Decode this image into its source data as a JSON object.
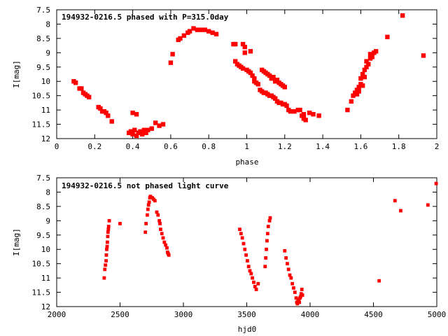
{
  "chart_data": [
    {
      "type": "scatter",
      "title": "194932-0216.5 phased with P=315.0day",
      "xlabel": "phase",
      "ylabel": "I[mag]",
      "xlim": [
        0,
        2
      ],
      "ylim": [
        12,
        7.5
      ],
      "y_inverted": true,
      "xticks": [
        0,
        0.2,
        0.4,
        0.6,
        0.8,
        1,
        1.2,
        1.4,
        1.6,
        1.8,
        2
      ],
      "xtick_labels": [
        "0",
        "0.2",
        "0.4",
        "0.6",
        "0.8",
        "1",
        "1.2",
        "1.4",
        "1.6",
        "1.8",
        "2"
      ],
      "yticks": [
        7.5,
        8,
        8.5,
        9,
        9.5,
        10,
        10.5,
        11,
        11.5,
        12
      ],
      "ytick_labels": [
        "7.5",
        "8",
        "8.5",
        "9",
        "9.5",
        "10",
        "10.5",
        "11",
        "11.5",
        "12"
      ],
      "grid": false,
      "marker_color": "#ff0000",
      "points": [
        [
          0.09,
          10.0
        ],
        [
          0.1,
          10.05
        ],
        [
          0.12,
          10.25
        ],
        [
          0.13,
          10.25
        ],
        [
          0.14,
          10.4
        ],
        [
          0.15,
          10.45
        ],
        [
          0.16,
          10.5
        ],
        [
          0.17,
          10.55
        ],
        [
          0.22,
          10.9
        ],
        [
          0.23,
          10.95
        ],
        [
          0.24,
          11.05
        ],
        [
          0.25,
          11.05
        ],
        [
          0.26,
          11.1
        ],
        [
          0.27,
          11.2
        ],
        [
          0.29,
          11.4
        ],
        [
          0.38,
          11.8
        ],
        [
          0.39,
          11.75
        ],
        [
          0.4,
          11.1
        ],
        [
          0.4,
          11.85
        ],
        [
          0.41,
          11.7
        ],
        [
          0.42,
          11.9
        ],
        [
          0.42,
          11.15
        ],
        [
          0.43,
          11.8
        ],
        [
          0.44,
          11.75
        ],
        [
          0.45,
          11.85
        ],
        [
          0.46,
          11.7
        ],
        [
          0.47,
          11.8
        ],
        [
          0.48,
          11.7
        ],
        [
          0.5,
          11.65
        ],
        [
          0.52,
          11.45
        ],
        [
          0.54,
          11.55
        ],
        [
          0.56,
          11.5
        ],
        [
          0.6,
          9.35
        ],
        [
          0.61,
          9.05
        ],
        [
          0.64,
          8.55
        ],
        [
          0.65,
          8.5
        ],
        [
          0.67,
          8.4
        ],
        [
          0.69,
          8.3
        ],
        [
          0.7,
          8.25
        ],
        [
          0.72,
          8.15
        ],
        [
          0.74,
          8.2
        ],
        [
          0.76,
          8.2
        ],
        [
          0.78,
          8.2
        ],
        [
          0.8,
          8.25
        ],
        [
          0.82,
          8.3
        ],
        [
          0.84,
          8.35
        ],
        [
          0.93,
          8.7
        ],
        [
          0.94,
          8.7
        ],
        [
          0.94,
          9.3
        ],
        [
          0.95,
          9.4
        ],
        [
          0.96,
          9.45
        ],
        [
          0.97,
          9.5
        ],
        [
          0.98,
          9.55
        ],
        [
          0.98,
          8.7
        ],
        [
          0.99,
          9.0
        ],
        [
          0.99,
          8.8
        ],
        [
          1.0,
          9.6
        ],
        [
          1.01,
          9.65
        ],
        [
          1.02,
          9.7
        ],
        [
          1.02,
          8.95
        ],
        [
          1.03,
          9.8
        ],
        [
          1.04,
          10.0
        ],
        [
          1.05,
          10.05
        ],
        [
          1.04,
          9.9
        ],
        [
          1.06,
          10.1
        ],
        [
          1.07,
          10.3
        ],
        [
          1.08,
          9.6
        ],
        [
          1.09,
          9.65
        ],
        [
          1.1,
          9.7
        ],
        [
          1.11,
          9.75
        ],
        [
          1.12,
          9.8
        ],
        [
          1.13,
          9.9
        ],
        [
          1.14,
          9.85
        ],
        [
          1.15,
          10.0
        ],
        [
          1.16,
          9.95
        ],
        [
          1.17,
          10.05
        ],
        [
          1.18,
          10.1
        ],
        [
          1.19,
          10.15
        ],
        [
          1.2,
          10.2
        ],
        [
          1.08,
          10.35
        ],
        [
          1.09,
          10.4
        ],
        [
          1.1,
          10.4
        ],
        [
          1.11,
          10.45
        ],
        [
          1.12,
          10.5
        ],
        [
          1.13,
          10.5
        ],
        [
          1.14,
          10.55
        ],
        [
          1.15,
          10.6
        ],
        [
          1.16,
          10.7
        ],
        [
          1.17,
          10.75
        ],
        [
          1.18,
          10.75
        ],
        [
          1.19,
          10.8
        ],
        [
          1.2,
          10.8
        ],
        [
          1.21,
          10.85
        ],
        [
          1.22,
          11.0
        ],
        [
          1.23,
          11.05
        ],
        [
          1.25,
          11.05
        ],
        [
          1.27,
          11.0
        ],
        [
          1.28,
          11.0
        ],
        [
          1.29,
          11.2
        ],
        [
          1.3,
          11.3
        ],
        [
          1.31,
          11.35
        ],
        [
          1.3,
          11.15
        ],
        [
          1.33,
          11.1
        ],
        [
          1.35,
          11.15
        ],
        [
          1.38,
          11.2
        ],
        [
          1.53,
          11.0
        ],
        [
          1.55,
          10.7
        ],
        [
          1.56,
          10.5
        ],
        [
          1.57,
          10.4
        ],
        [
          1.58,
          10.3
        ],
        [
          1.58,
          10.45
        ],
        [
          1.59,
          10.2
        ],
        [
          1.59,
          10.35
        ],
        [
          1.6,
          10.1
        ],
        [
          1.6,
          9.9
        ],
        [
          1.61,
          9.75
        ],
        [
          1.61,
          10.15
        ],
        [
          1.62,
          9.6
        ],
        [
          1.62,
          9.85
        ],
        [
          1.63,
          9.5
        ],
        [
          1.63,
          9.3
        ],
        [
          1.64,
          9.4
        ],
        [
          1.65,
          9.2
        ],
        [
          1.65,
          9.05
        ],
        [
          1.66,
          9.15
        ],
        [
          1.67,
          9.0
        ],
        [
          1.68,
          8.95
        ],
        [
          1.74,
          8.45
        ],
        [
          1.82,
          7.7
        ],
        [
          1.93,
          9.1
        ]
      ]
    },
    {
      "type": "scatter",
      "title": "194932-0216.5 not phased light curve",
      "xlabel": "hjd0",
      "ylabel": "I[mag]",
      "xlim": [
        2000,
        5000
      ],
      "ylim": [
        12,
        7.5
      ],
      "y_inverted": true,
      "xticks": [
        2000,
        2500,
        3000,
        3500,
        4000,
        4500,
        5000
      ],
      "xtick_labels": [
        "2000",
        "2500",
        "3000",
        "3500",
        "4000",
        "4500",
        "5000"
      ],
      "yticks": [
        7.5,
        8,
        8.5,
        9,
        9.5,
        10,
        10.5,
        11,
        11.5,
        12
      ],
      "ytick_labels": [
        "7.5",
        "8",
        "8.5",
        "9",
        "9.5",
        "10",
        "10.5",
        "11",
        "11.5",
        "12"
      ],
      "grid": false,
      "marker_color": "#ff0000",
      "points": [
        [
          2375,
          11.0
        ],
        [
          2380,
          10.7
        ],
        [
          2385,
          10.55
        ],
        [
          2390,
          10.4
        ],
        [
          2392,
          10.2
        ],
        [
          2395,
          10.0
        ],
        [
          2398,
          9.9
        ],
        [
          2400,
          9.75
        ],
        [
          2403,
          9.55
        ],
        [
          2405,
          9.4
        ],
        [
          2408,
          9.3
        ],
        [
          2410,
          9.2
        ],
        [
          2415,
          9.0
        ],
        [
          2500,
          9.1
        ],
        [
          2700,
          9.4
        ],
        [
          2705,
          9.1
        ],
        [
          2715,
          8.8
        ],
        [
          2720,
          8.6
        ],
        [
          2725,
          8.45
        ],
        [
          2730,
          8.35
        ],
        [
          2735,
          8.2
        ],
        [
          2740,
          8.15
        ],
        [
          2745,
          8.2
        ],
        [
          2755,
          8.2
        ],
        [
          2765,
          8.25
        ],
        [
          2775,
          8.3
        ],
        [
          2790,
          8.7
        ],
        [
          2800,
          8.8
        ],
        [
          2810,
          9.0
        ],
        [
          2815,
          9.1
        ],
        [
          2820,
          9.3
        ],
        [
          2830,
          9.45
        ],
        [
          2840,
          9.6
        ],
        [
          2850,
          9.75
        ],
        [
          2860,
          9.85
        ],
        [
          2870,
          9.95
        ],
        [
          2875,
          10.1
        ],
        [
          2880,
          10.15
        ],
        [
          2885,
          10.2
        ],
        [
          3445,
          9.3
        ],
        [
          3455,
          9.45
        ],
        [
          3465,
          9.6
        ],
        [
          3475,
          9.8
        ],
        [
          3485,
          10.0
        ],
        [
          3495,
          10.2
        ],
        [
          3505,
          10.4
        ],
        [
          3515,
          10.6
        ],
        [
          3525,
          10.75
        ],
        [
          3535,
          10.85
        ],
        [
          3545,
          11.0
        ],
        [
          3555,
          11.15
        ],
        [
          3565,
          11.3
        ],
        [
          3575,
          11.4
        ],
        [
          3590,
          11.2
        ],
        [
          3645,
          10.6
        ],
        [
          3650,
          10.3
        ],
        [
          3655,
          10.0
        ],
        [
          3660,
          9.7
        ],
        [
          3665,
          9.45
        ],
        [
          3670,
          9.2
        ],
        [
          3680,
          9.0
        ],
        [
          3685,
          8.9
        ],
        [
          3800,
          10.05
        ],
        [
          3810,
          10.3
        ],
        [
          3820,
          10.5
        ],
        [
          3830,
          10.7
        ],
        [
          3840,
          10.9
        ],
        [
          3850,
          11.0
        ],
        [
          3860,
          11.2
        ],
        [
          3870,
          11.35
        ],
        [
          3880,
          11.5
        ],
        [
          3890,
          11.7
        ],
        [
          3895,
          11.85
        ],
        [
          3900,
          11.9
        ],
        [
          3905,
          11.8
        ],
        [
          3910,
          11.75
        ],
        [
          3915,
          11.85
        ],
        [
          3920,
          11.7
        ],
        [
          3925,
          11.65
        ],
        [
          3930,
          11.55
        ],
        [
          3935,
          11.4
        ],
        [
          3940,
          11.6
        ],
        [
          4545,
          11.1
        ],
        [
          4670,
          8.3
        ],
        [
          4715,
          8.65
        ],
        [
          4930,
          8.45
        ],
        [
          4995,
          7.7
        ]
      ]
    }
  ]
}
